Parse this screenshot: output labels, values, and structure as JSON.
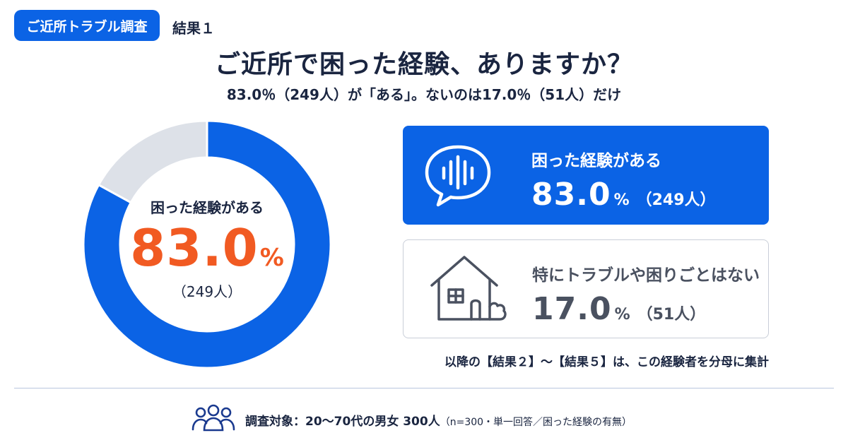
{
  "header": {
    "tag": "ご近所トラブル調査",
    "result_label": "結果１",
    "title": "ご近所で困った経験、ありますか？",
    "subtitle": "83.0％（249人）が「ある」。ないのは17.0％（51人）だけ"
  },
  "colors": {
    "primary": "#0b63e5",
    "accent": "#f15a22",
    "neutral": "#dde1e8"
  },
  "chart_data": {
    "type": "pie",
    "categories": [
      "困った経験がある",
      "特にトラブルや困りごとはない"
    ],
    "values": [
      83.0,
      17.0
    ],
    "counts": [
      249,
      51
    ],
    "center": {
      "label": "困った経験がある",
      "value": "83.0",
      "unit": "%",
      "count": "（249人）"
    }
  },
  "cards": [
    {
      "label": "困った経験がある",
      "value": "83.0",
      "unit": "%",
      "count": "（249人）",
      "icon": "speech-bubble-sound-icon"
    },
    {
      "label": "特にトラブルや困りごとはない",
      "value": "17.0",
      "unit": "%",
      "count": "（51人）",
      "icon": "house-icon"
    }
  ],
  "note": "以降の【結果２】〜【結果５】は、この経験者を分母に集計",
  "footer": {
    "icon": "people-group-icon",
    "text": "調査対象：20〜70代の男女 300人",
    "detail": "（n=300・単一回答／困った経験の有無）"
  }
}
